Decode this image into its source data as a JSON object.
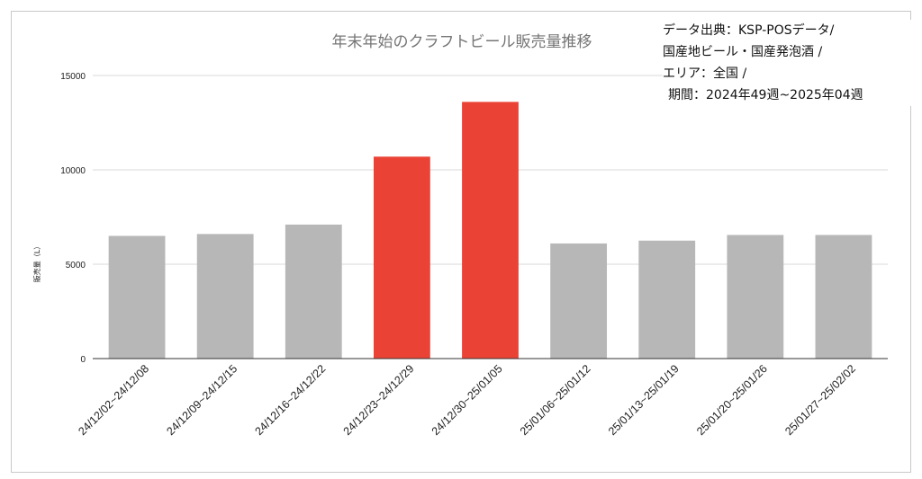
{
  "source_note": {
    "line1": "データ出典：KSP-POSデータ/",
    "line2": "国産地ビール・国産発泡酒 /",
    "line3": "エリア：全国 /",
    "line4": "期間：2024年49週~2025年04週"
  },
  "colors": {
    "normal_bar": "#b7b7b7",
    "highlight_bar": "#ea4335",
    "grid": "#d9d9d9",
    "axis": "#333333"
  },
  "chart_data": {
    "type": "bar",
    "title": "年末年始のクラフトビール販売量推移",
    "ylabel": "販売量（L）",
    "xlabel": "",
    "ylim": [
      0,
      15000
    ],
    "yticks": [
      0,
      5000,
      10000,
      15000
    ],
    "ytick_labels": [
      "0",
      "5000",
      "10000",
      "15000"
    ],
    "grid": true,
    "categories": [
      "24/12/02~24/12/08",
      "24/12/09~24/12/15",
      "24/12/16~24/12/22",
      "24/12/23~24/12/29",
      "24/12/30~25/01/05",
      "25/01/06~25/01/12",
      "25/01/13~25/01/19",
      "25/01/20~25/01/26",
      "25/01/27~25/02/02"
    ],
    "values": [
      6500,
      6600,
      7100,
      10700,
      13600,
      6100,
      6250,
      6550,
      6550
    ],
    "highlight": [
      false,
      false,
      false,
      true,
      true,
      false,
      false,
      false,
      false
    ]
  }
}
